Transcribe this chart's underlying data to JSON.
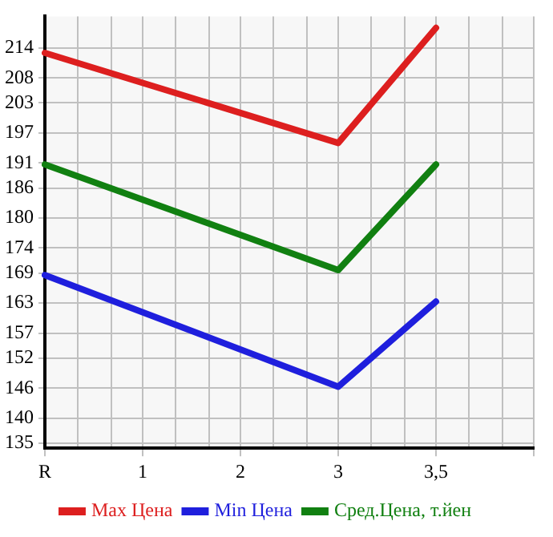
{
  "chart_data": {
    "type": "line",
    "categories": [
      "R",
      "1",
      "2",
      "3",
      "3,5",
      null
    ],
    "series": [
      {
        "name": "Max Цена",
        "color": "#dd1f1f",
        "values": [
          213,
          null,
          null,
          195,
          218,
          null
        ]
      },
      {
        "name": "Min Цена",
        "color": "#1f1fdd",
        "values": [
          168.6,
          null,
          null,
          146.3,
          163.3,
          null
        ]
      },
      {
        "name": "Сред.Цена, т.йен",
        "color": "#118011",
        "values": [
          190.7,
          null,
          null,
          169.6,
          190.7,
          null
        ]
      }
    ],
    "ylim": [
      134,
      220.3
    ],
    "yticks": [
      135,
      140,
      146,
      152,
      157,
      163,
      169,
      174,
      180,
      186,
      191,
      197,
      203,
      208,
      214
    ],
    "grid": true,
    "legend": "bottom",
    "marker": "none",
    "line_style": "solid"
  }
}
